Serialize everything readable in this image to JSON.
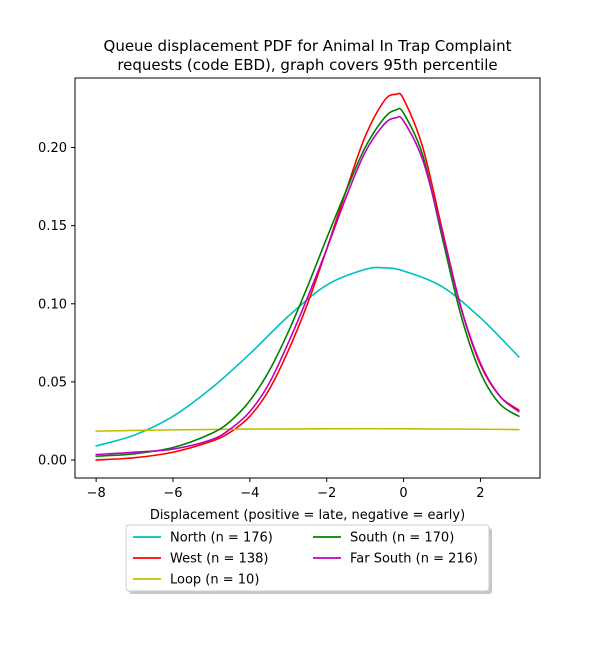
{
  "chart_data": {
    "type": "line",
    "title_lines": [
      "Queue displacement PDF for Animal In Trap Complaint",
      "requests (code EBD), graph covers 95th percentile"
    ],
    "xlabel": "Displacement (positive = late, negative = early)",
    "ylabel": "",
    "xlim": [
      -8.55,
      3.55
    ],
    "ylim": [
      -0.0115,
      0.2445
    ],
    "xticks": [
      -8,
      -6,
      -4,
      -2,
      0,
      2
    ],
    "xtick_labels": [
      "−8",
      "−6",
      "−4",
      "−2",
      "0",
      "2"
    ],
    "yticks": [
      0.0,
      0.05,
      0.1,
      0.15,
      0.2
    ],
    "ytick_labels": [
      "0.00",
      "0.05",
      "0.10",
      "0.15",
      "0.20"
    ],
    "grid": false,
    "legend_position": "below plot, two columns, shadowed box",
    "series": [
      {
        "name": "North (n = 176)",
        "color": "#00bfbf",
        "x": [
          -8,
          -7,
          -6,
          -5,
          -4,
          -3,
          -2,
          -1,
          -0.5,
          0,
          1,
          2,
          3
        ],
        "y": [
          0.009,
          0.016,
          0.028,
          0.046,
          0.068,
          0.092,
          0.112,
          0.122,
          0.123,
          0.121,
          0.111,
          0.091,
          0.066
        ]
      },
      {
        "name": "West (n = 138)",
        "color": "#ff0000",
        "x": [
          -8,
          -7,
          -6,
          -5,
          -4.5,
          -4,
          -3.5,
          -3,
          -2.5,
          -2,
          -1.5,
          -1,
          -0.5,
          -0.2,
          0,
          0.5,
          1,
          1.5,
          2,
          2.5,
          3
        ],
        "y": [
          0.0,
          0.0015,
          0.005,
          0.012,
          0.018,
          0.028,
          0.045,
          0.07,
          0.1,
          0.135,
          0.172,
          0.207,
          0.23,
          0.234,
          0.231,
          0.2,
          0.148,
          0.097,
          0.061,
          0.041,
          0.032
        ]
      },
      {
        "name": "Loop (n = 10)",
        "color": "#bfbf00",
        "x": [
          -8,
          -6,
          -4,
          -2,
          0,
          2,
          3
        ],
        "y": [
          0.0185,
          0.0193,
          0.0198,
          0.02,
          0.02,
          0.0197,
          0.0195
        ]
      },
      {
        "name": "South (n = 170)",
        "color": "#008000",
        "x": [
          -8,
          -7,
          -6,
          -5,
          -4.5,
          -4,
          -3.5,
          -3,
          -2.5,
          -2,
          -1.5,
          -1,
          -0.5,
          -0.2,
          0,
          0.5,
          1,
          1.5,
          2,
          2.5,
          3
        ],
        "y": [
          0.0025,
          0.004,
          0.008,
          0.017,
          0.025,
          0.038,
          0.057,
          0.082,
          0.111,
          0.142,
          0.172,
          0.2,
          0.219,
          0.224,
          0.222,
          0.195,
          0.143,
          0.092,
          0.056,
          0.036,
          0.028
        ]
      },
      {
        "name": "Far South (n = 216)",
        "color": "#bf00bf",
        "x": [
          -8,
          -7,
          -6,
          -5,
          -4.5,
          -4,
          -3.5,
          -3,
          -2.5,
          -2,
          -1.5,
          -1,
          -0.5,
          -0.2,
          0,
          0.5,
          1,
          1.5,
          2,
          2.5,
          3
        ],
        "y": [
          0.0035,
          0.005,
          0.007,
          0.013,
          0.02,
          0.031,
          0.049,
          0.075,
          0.104,
          0.135,
          0.168,
          0.197,
          0.215,
          0.219,
          0.217,
          0.192,
          0.146,
          0.097,
          0.062,
          0.041,
          0.031
        ]
      }
    ]
  }
}
